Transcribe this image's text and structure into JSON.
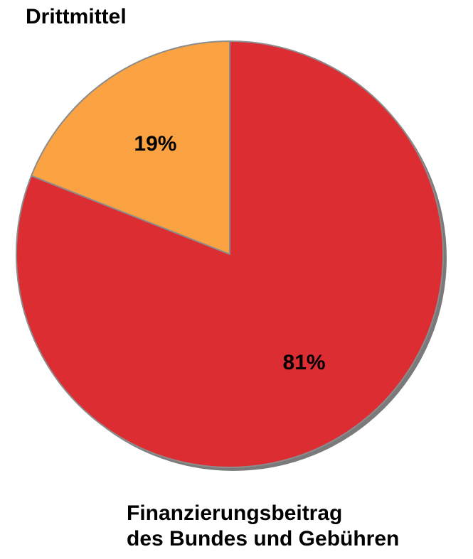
{
  "chart_data": {
    "type": "pie",
    "slices": [
      {
        "label": "Drittmittel",
        "value": 19,
        "value_label": "19%",
        "color": "#FBA243"
      },
      {
        "label": "Finanzierungsbeitrag des Bundes und Gebühren",
        "label_lines": [
          "Finanzierungsbeitrag",
          "des Bundes und Gebühren"
        ],
        "value": 81,
        "value_label": "81%",
        "color": "#DC2D33"
      }
    ],
    "start_angle": "top",
    "direction": "counter-clockwise",
    "legend": "none"
  },
  "colors": {
    "shadow": "#7a7a7a",
    "separator": "#8c8c8c"
  }
}
